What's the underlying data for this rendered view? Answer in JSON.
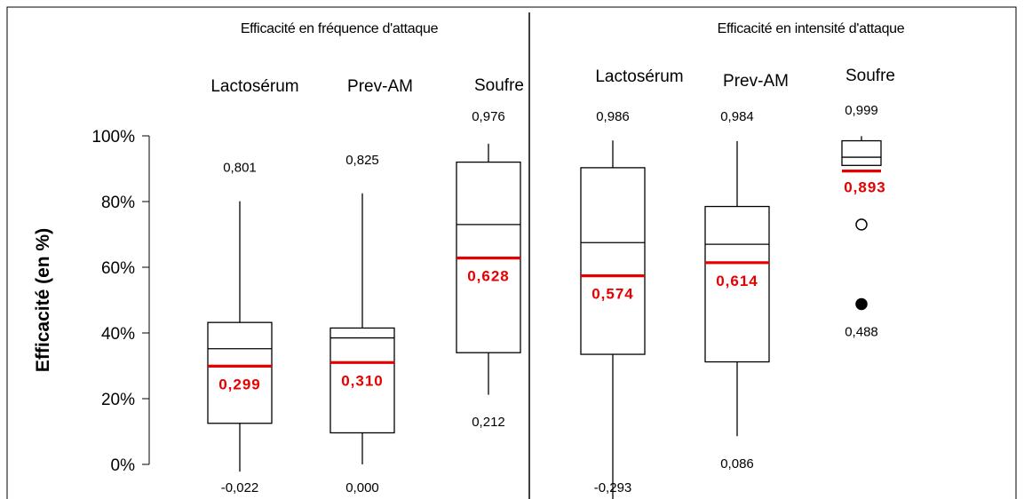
{
  "chart_data": {
    "type": "box",
    "ylabel": "Efficacité (en %)",
    "y_ticks": [
      "0%",
      "20%",
      "40%",
      "60%",
      "80%",
      "100%"
    ],
    "ylim": [
      0,
      1
    ],
    "colors": {
      "mean": "#e60000",
      "box": "#000000"
    },
    "panels": [
      {
        "title": "Efficacité en fréquence d'attaque",
        "groups": [
          {
            "name": "Lactosérum",
            "min": -0.022,
            "q1": 0.125,
            "median": 0.352,
            "q3": 0.432,
            "max": 0.801,
            "mean": 0.299,
            "min_label": "-0,022",
            "max_label": "0,801",
            "mean_label": "0,299",
            "outliers": []
          },
          {
            "name": "Prev-AM",
            "min": 0.0,
            "q1": 0.096,
            "median": 0.385,
            "q3": 0.415,
            "max": 0.825,
            "mean": 0.31,
            "min_label": "0,000",
            "max_label": "0,825",
            "mean_label": "0,310",
            "outliers": []
          },
          {
            "name": "Soufre",
            "min": 0.212,
            "q1": 0.34,
            "median": 0.73,
            "q3": 0.92,
            "max": 0.976,
            "mean": 0.628,
            "min_label": "0,212",
            "max_label": "0,976",
            "mean_label": "0,628",
            "outliers": []
          }
        ]
      },
      {
        "title": "Efficacité en intensité d'attaque",
        "groups": [
          {
            "name": "Lactosérum",
            "min": -0.293,
            "q1": 0.335,
            "median": 0.675,
            "q3": 0.903,
            "max": 0.986,
            "mean": 0.574,
            "min_label": "-0,293",
            "max_label": "0,986",
            "mean_label": "0,574",
            "outliers": []
          },
          {
            "name": "Prev-AM",
            "min": 0.086,
            "q1": 0.312,
            "median": 0.67,
            "q3": 0.785,
            "max": 0.984,
            "mean": 0.614,
            "min_label": "0,086",
            "max_label": "0,984",
            "mean_label": "0,614",
            "outliers": []
          },
          {
            "name": "Soufre",
            "min": 0.91,
            "q1": 0.91,
            "median": 0.935,
            "q3": 0.985,
            "max": 0.999,
            "mean": 0.893,
            "min_label": "",
            "max_label": "0,999",
            "mean_label": "0,893",
            "outliers": [
              {
                "value": 0.73,
                "filled": false,
                "label": ""
              },
              {
                "value": 0.488,
                "filled": true,
                "label": "0,488"
              }
            ]
          }
        ]
      }
    ]
  }
}
